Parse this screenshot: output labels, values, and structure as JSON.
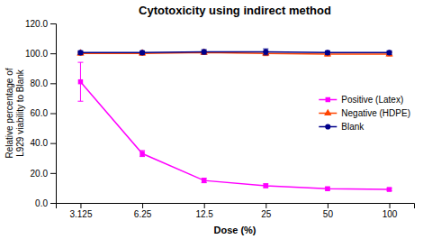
{
  "chart_data": {
    "type": "line",
    "title": "Cytotoxicity using indirect method",
    "x_label": "Dose (%)",
    "y_label": "Relative percentage of\nL929 viability to Blank",
    "categories": [
      "3.125",
      "6.25",
      "12.5",
      "25",
      "50",
      "100"
    ],
    "series": [
      {
        "name": "Positive (Latex)",
        "color": "#FF00FF",
        "marker": "square",
        "values": [
          81.0,
          33.0,
          15.0,
          11.5,
          9.5,
          9.0
        ],
        "errors": [
          13.0,
          2.0,
          1.5,
          1.2,
          1.0,
          0.8
        ]
      },
      {
        "name": "Negative (HDPE)",
        "color": "#FF4400",
        "marker": "triangle",
        "values": [
          100.0,
          100.0,
          100.5,
          100.0,
          99.5,
          99.5
        ],
        "errors": [
          1.2,
          1.2,
          1.2,
          1.5,
          1.2,
          1.2
        ]
      },
      {
        "name": "Blank",
        "color": "#00008B",
        "marker": "circle",
        "values": [
          100.5,
          100.5,
          101.0,
          101.0,
          100.5,
          100.5
        ],
        "errors": [
          1.2,
          1.2,
          1.5,
          2.0,
          1.2,
          1.2
        ]
      }
    ],
    "ylim": [
      0,
      120
    ],
    "yticks": [
      {
        "value": 0,
        "label": "0.0"
      },
      {
        "value": 20,
        "label": "20.0"
      },
      {
        "value": 40,
        "label": "40.0"
      },
      {
        "value": 60,
        "label": "60.0"
      },
      {
        "value": 80,
        "label": "80.0"
      },
      {
        "value": 100,
        "label": "100.0"
      },
      {
        "value": 120,
        "label": "120.0"
      }
    ],
    "grid": false,
    "legend": "right"
  }
}
